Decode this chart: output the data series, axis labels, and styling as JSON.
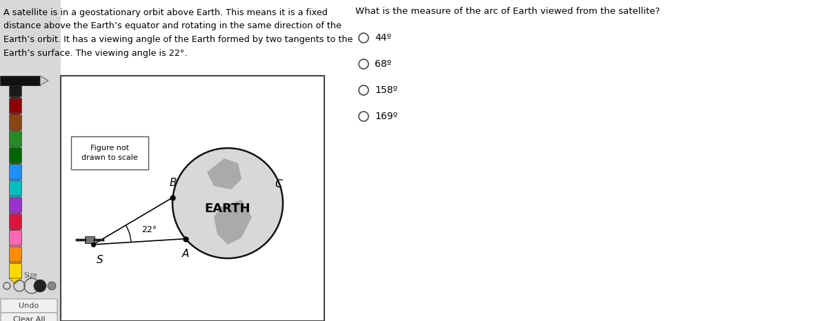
{
  "bg_color": "#ffffff",
  "text_paragraph": "A satellite is in a geostationary orbit above Earth. This means it is a fixed\ndistance above the Earth’s equator and rotating in the same direction of the\nEarth’s orbit. It has a viewing angle of the Earth formed by two tangents to the\nEarth’s surface. The viewing angle is 22°.",
  "question_text": "What is the measure of the arc of Earth viewed from the satellite?",
  "choices": [
    "44º",
    "68º",
    "158º",
    "169º"
  ],
  "figure_note": "Figure not\ndrawn to scale",
  "label_B": "B",
  "label_A": "A",
  "label_S": "S",
  "label_C": "C",
  "angle_label": "22°",
  "earth_label": "EARTH",
  "crayon_colors": [
    "#1a1a1a",
    "#8B0000",
    "#8B4513",
    "#228B22",
    "#006400",
    "#1E90FF",
    "#00BFBF",
    "#9932CC",
    "#DC143C",
    "#FF69B4",
    "#FF8C00",
    "#FFD700",
    "#D2B48C",
    "#888888",
    "#C0C0C0",
    "#FFFFFF"
  ],
  "toolbar_bg": "#e8e8e8",
  "panel_border": "#555555",
  "undo_label": "Undo",
  "clearall_label": "Clear All"
}
